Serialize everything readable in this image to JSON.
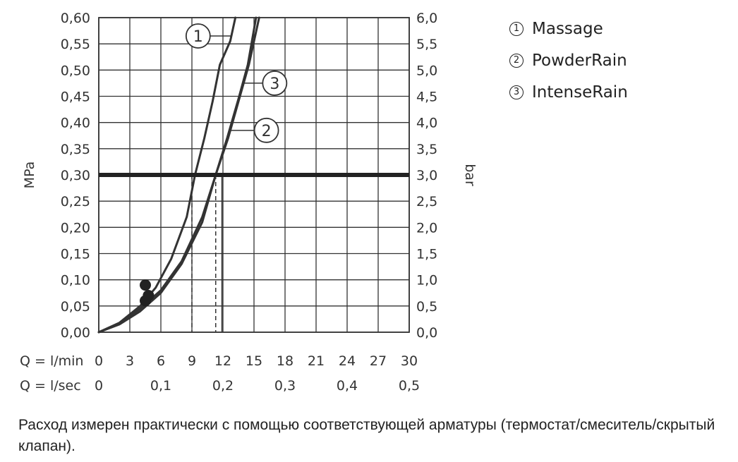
{
  "chart_data": {
    "type": "line",
    "title": "",
    "y_left": {
      "label": "MPa",
      "range": [
        0,
        0.6
      ],
      "ticks": [
        "0,00",
        "0,05",
        "0,10",
        "0,15",
        "0,20",
        "0,25",
        "0,30",
        "0,35",
        "0,40",
        "0,45",
        "0,50",
        "0,55",
        "0,60"
      ]
    },
    "y_right": {
      "label": "bar",
      "range": [
        0,
        6
      ],
      "ticks": [
        "0,0",
        "0,5",
        "1,0",
        "1,5",
        "2,0",
        "2,5",
        "3,0",
        "3,5",
        "4,0",
        "4,5",
        "5,0",
        "5,5",
        "6,0"
      ]
    },
    "x_lmin": {
      "prefix": "Q = l/min",
      "range": [
        0,
        30
      ],
      "ticks": [
        "0",
        "3",
        "6",
        "9",
        "12",
        "15",
        "18",
        "21",
        "24",
        "27",
        "30"
      ]
    },
    "x_lsec": {
      "prefix": "Q = l/sec",
      "ticks": [
        {
          "value": 0,
          "label": "0"
        },
        {
          "value": 0.1,
          "label": "0,1"
        },
        {
          "value": 0.2,
          "label": "0,2"
        },
        {
          "value": 0.3,
          "label": "0,3"
        },
        {
          "value": 0.4,
          "label": "0,4"
        },
        {
          "value": 0.5,
          "label": "0,5"
        }
      ]
    },
    "grid": true,
    "reference_line": {
      "y": 0.3
    },
    "drop_lines": [
      {
        "x": 9.0,
        "style": "dashed"
      },
      {
        "x": 11.3,
        "style": "dashed"
      },
      {
        "x": 11.9,
        "style": "solid"
      }
    ],
    "series": [
      {
        "name": "Massage",
        "marker_label": "1",
        "label_at": {
          "x": 9.6,
          "y": 0.565
        },
        "points": [
          [
            0,
            0
          ],
          [
            2,
            0.018
          ],
          [
            4,
            0.05
          ],
          [
            5.5,
            0.085
          ],
          [
            7,
            0.14
          ],
          [
            8.5,
            0.22
          ],
          [
            9.3,
            0.3
          ],
          [
            10.2,
            0.37
          ],
          [
            11,
            0.44
          ],
          [
            11.7,
            0.51
          ],
          [
            12.7,
            0.555
          ],
          [
            13.2,
            0.6
          ]
        ]
      },
      {
        "name": "PowderRain",
        "marker_label": "2",
        "label_at": {
          "x": 16.2,
          "y": 0.385
        },
        "points": [
          [
            0,
            0
          ],
          [
            2,
            0.015
          ],
          [
            4,
            0.04
          ],
          [
            6,
            0.075
          ],
          [
            8,
            0.13
          ],
          [
            10,
            0.21
          ],
          [
            11.3,
            0.3
          ],
          [
            12.5,
            0.37
          ],
          [
            13.5,
            0.44
          ],
          [
            14.5,
            0.51
          ],
          [
            15.5,
            0.6
          ]
        ]
      },
      {
        "name": "IntenseRain",
        "marker_label": "3",
        "label_at": {
          "x": 17.0,
          "y": 0.475
        },
        "points": [
          [
            0,
            0
          ],
          [
            2,
            0.017
          ],
          [
            4,
            0.045
          ],
          [
            6,
            0.08
          ],
          [
            8,
            0.135
          ],
          [
            10,
            0.22
          ],
          [
            11.3,
            0.3
          ],
          [
            12.4,
            0.37
          ],
          [
            13.5,
            0.445
          ],
          [
            14.4,
            0.51
          ],
          [
            15.2,
            0.6
          ]
        ]
      }
    ],
    "markers": [
      {
        "x": 4.5,
        "y": 0.09
      },
      {
        "x": 4.8,
        "y": 0.07
      },
      {
        "x": 4.5,
        "y": 0.06
      }
    ],
    "legend": {
      "placement": "right",
      "items": [
        {
          "num": "1",
          "label": "Massage"
        },
        {
          "num": "2",
          "label": "PowderRain"
        },
        {
          "num": "3",
          "label": "IntenseRain"
        }
      ]
    }
  },
  "footnote": "Расход измерен практически с помощью соответствующей арматуры (термостат/смеситель/скрытый клапан).",
  "colors": {
    "line": "#333333",
    "grid": "#333333",
    "text": "#333333"
  }
}
